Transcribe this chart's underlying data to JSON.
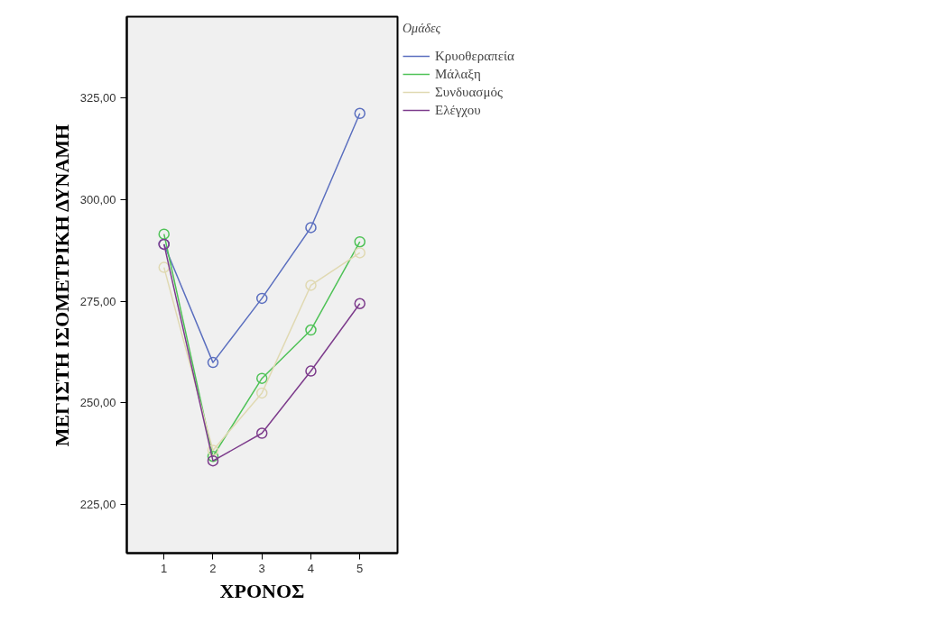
{
  "chart_data": {
    "type": "line",
    "xlabel": "ΧΡΟΝΟΣ",
    "ylabel": "ΜΕΓΙΣΤΗ ΙΣΟΜΕΤΡΙΚΗ ΔΥΝΑΜΗ",
    "legend_title": "Ομάδες",
    "x": [
      1,
      2,
      3,
      4,
      5
    ],
    "series": [
      {
        "name": "Κρυοθεραπεία",
        "color": "#5b6fbf",
        "values": [
          289.0,
          259.9,
          275.7,
          293.1,
          321.2
        ]
      },
      {
        "name": "Μάλαξη",
        "color": "#4fc257",
        "values": [
          291.5,
          236.8,
          256.0,
          267.9,
          289.6
        ]
      },
      {
        "name": "Συνδυασμός",
        "color": "#e0d9b2",
        "values": [
          283.3,
          238.3,
          252.4,
          278.9,
          286.9
        ]
      },
      {
        "name": "Ελέγχου",
        "color": "#7d3c8c",
        "values": [
          289.0,
          235.7,
          242.5,
          257.8,
          274.4
        ]
      }
    ],
    "xlim": [
      0.24,
      5.77
    ],
    "ylim": [
      213,
      345
    ],
    "xticks": [
      1,
      2,
      3,
      4,
      5
    ],
    "yticks": [
      {
        "value": 225,
        "label": "225,00"
      },
      {
        "value": 250,
        "label": "250,00"
      },
      {
        "value": 275,
        "label": "275,00"
      },
      {
        "value": 300,
        "label": "300,00"
      },
      {
        "value": 325,
        "label": "325,00"
      }
    ],
    "grid": false,
    "legend": "top right",
    "marker": "circle",
    "line_style": "solid"
  }
}
